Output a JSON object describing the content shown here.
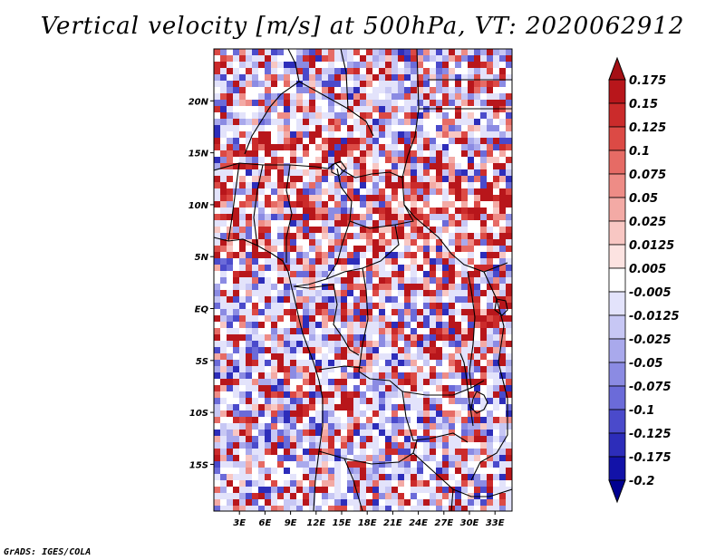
{
  "title": "Vertical velocity [m/s] at 500hPa, VT: 2020062912",
  "credit": "GrADS: IGES/COLA",
  "map": {
    "lat_ticks": [
      "20N",
      "15N",
      "10N",
      "5N",
      "EQ",
      "5S",
      "10S",
      "15S"
    ],
    "lon_ticks": [
      "3E",
      "6E",
      "9E",
      "12E",
      "15E",
      "18E",
      "21E",
      "24E",
      "27E",
      "30E",
      "33E"
    ],
    "lat_range": [
      -19.5,
      25
    ],
    "lon_range": [
      0,
      35
    ]
  },
  "colorbar": {
    "labels": [
      "0.175",
      "0.15",
      "0.125",
      "0.1",
      "0.075",
      "0.05",
      "0.025",
      "0.0125",
      "0.005",
      "-0.005",
      "-0.0125",
      "-0.025",
      "-0.05",
      "-0.075",
      "-0.1",
      "-0.125",
      "-0.175",
      "-0.2"
    ],
    "colors": [
      "#a50f15",
      "#b8161b",
      "#cb2b2b",
      "#dc4a45",
      "#e66b65",
      "#ee8c86",
      "#f3aaa5",
      "#f8c7c3",
      "#fce3e1",
      "#ffffff",
      "#e3e3fb",
      "#c7c7f4",
      "#a9a9ec",
      "#8b8be3",
      "#6b6bd9",
      "#4a4acb",
      "#2d2dba",
      "#1212a8",
      "#000090"
    ]
  }
}
